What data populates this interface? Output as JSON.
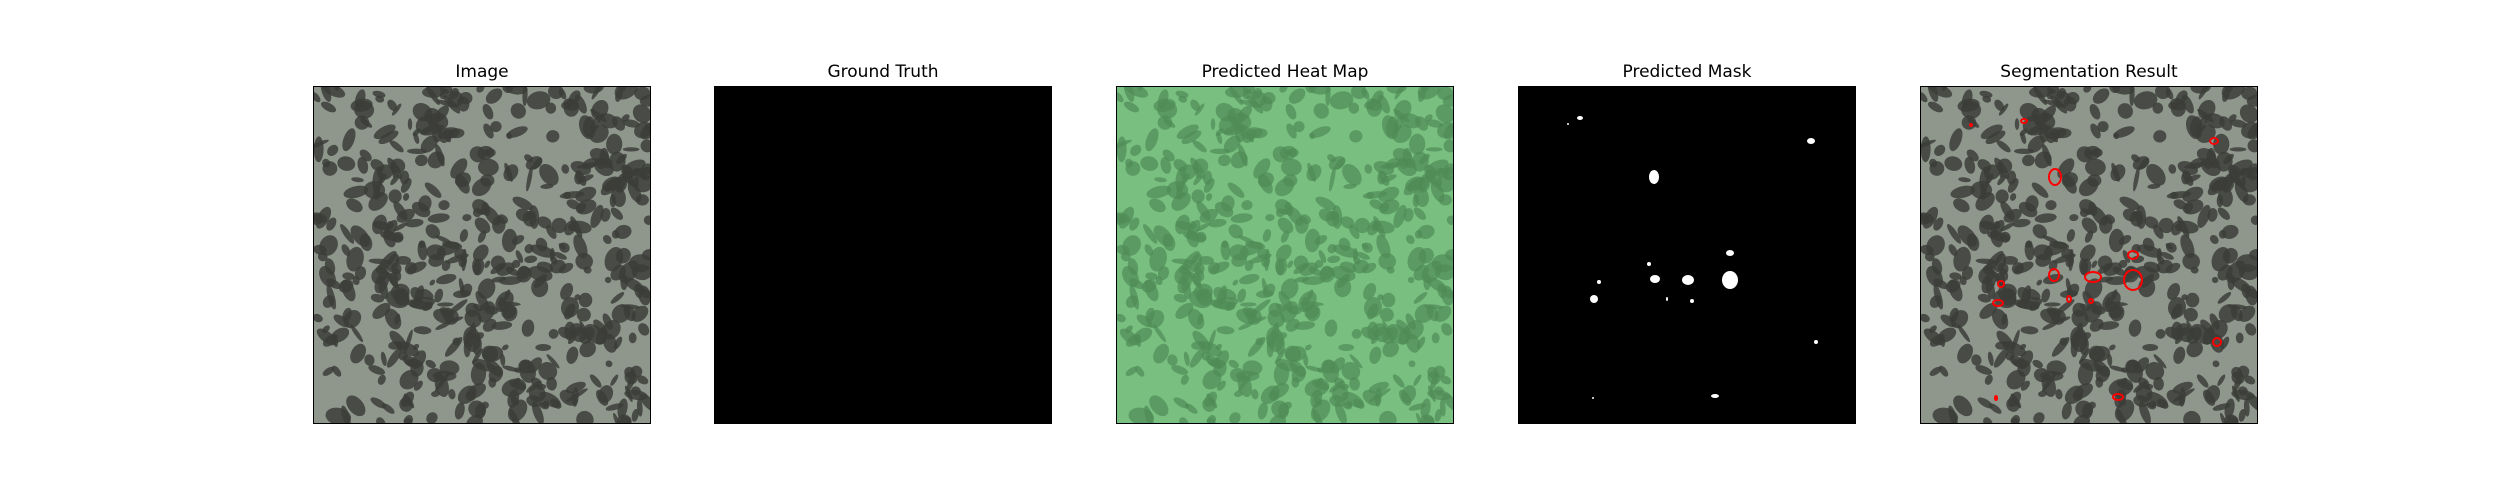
{
  "figure": {
    "panels": [
      {
        "key": "image",
        "title": "Image",
        "fill": "#8f978d",
        "blob": "#3c3d3a"
      },
      {
        "key": "ground_truth",
        "title": "Ground Truth",
        "fill": "#000000"
      },
      {
        "key": "heat_map",
        "title": "Predicted Heat Map",
        "fill": "#78bf80",
        "blob": "#4e8a55"
      },
      {
        "key": "mask",
        "title": "Predicted Mask",
        "fill": "#000000",
        "mark": "#ffffff"
      },
      {
        "key": "segmentation",
        "title": "Segmentation Result",
        "fill": "#8f978d",
        "blob": "#3c3d3a",
        "outline": "#ff0000"
      }
    ]
  }
}
